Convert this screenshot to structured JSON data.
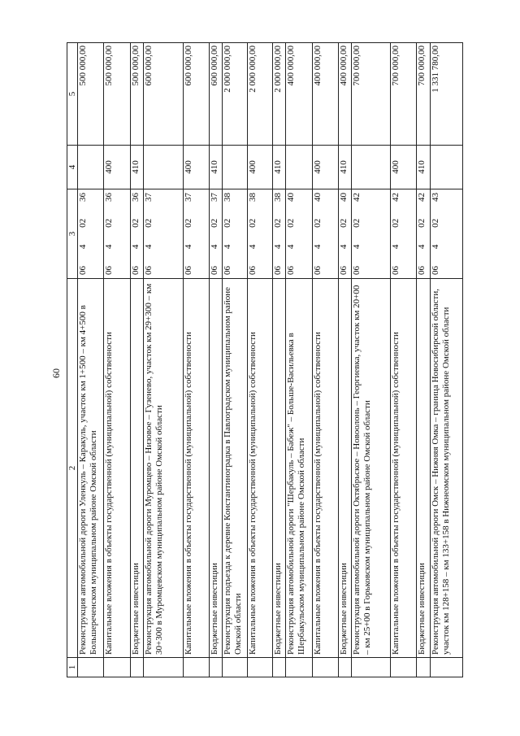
{
  "page_number": "60",
  "headers": [
    "1",
    "2",
    "3",
    "4",
    "5"
  ],
  "rows": [
    {
      "c1": "",
      "c2": "Реконструкция автомобильной дороги Уленкуль – Каракуль, участок км 1+500 – км 4+500 в Большереченском муниципальном районе Омской области",
      "c3": [
        "06",
        "4",
        "02",
        "36"
      ],
      "c4": "",
      "c5": "500 000,00"
    },
    {
      "c1": "",
      "c2": "Капитальные вложения в объекты государственной (муниципальной) собственности",
      "c3": [
        "06",
        "4",
        "02",
        "36"
      ],
      "c4": "400",
      "c5": "500 000,00"
    },
    {
      "c1": "",
      "c2": "Бюджетные инвестиции",
      "c3": [
        "06",
        "4",
        "02",
        "36"
      ],
      "c4": "410",
      "c5": "500 000,00"
    },
    {
      "c1": "",
      "c2": "Реконструкция автомобильной дороги Муромцево – Низовое – Гузенево, участок км 29+300 – км 30+300 в Муромцевском муниципальном районе Омской области",
      "c3": [
        "06",
        "4",
        "02",
        "37"
      ],
      "c4": "",
      "c5": "600 000,00"
    },
    {
      "c1": "",
      "c2": "Капитальные вложения в объекты государственной (муниципальной) собственности",
      "c3": [
        "06",
        "4",
        "02",
        "37"
      ],
      "c4": "400",
      "c5": "600 000,00"
    },
    {
      "c1": "",
      "c2": "Бюджетные инвестиции",
      "c3": [
        "06",
        "4",
        "02",
        "37"
      ],
      "c4": "410",
      "c5": "600 000,00"
    },
    {
      "c1": "",
      "c2": "Реконструкция подъезда к деревне Константиноградка в Павлоградском муниципальном районе Омской области",
      "c3": [
        "06",
        "4",
        "02",
        "38"
      ],
      "c4": "",
      "c5": "2 000 000,00"
    },
    {
      "c1": "",
      "c2": "Капитальные вложения в объекты государственной (муниципальной) собственности",
      "c3": [
        "06",
        "4",
        "02",
        "38"
      ],
      "c4": "400",
      "c5": "2 000 000,00"
    },
    {
      "c1": "",
      "c2": "Бюджетные инвестиции",
      "c3": [
        "06",
        "4",
        "02",
        "38"
      ],
      "c4": "410",
      "c5": "2 000 000,00"
    },
    {
      "c1": "",
      "c2": "Реконструкция автомобильной дороги \"Шербакуль – Бабеж\" – Больше-Васильевка в Шербакульском муниципальном районе Омской области",
      "c3": [
        "06",
        "4",
        "02",
        "40"
      ],
      "c4": "",
      "c5": "400 000,00"
    },
    {
      "c1": "",
      "c2": "Капитальные вложения в объекты государственной (муниципальной) собственности",
      "c3": [
        "06",
        "4",
        "02",
        "40"
      ],
      "c4": "400",
      "c5": "400 000,00"
    },
    {
      "c1": "",
      "c2": "Бюджетные инвестиции",
      "c3": [
        "06",
        "4",
        "02",
        "40"
      ],
      "c4": "410",
      "c5": "400 000,00"
    },
    {
      "c1": "",
      "c2": "Реконструкция автомобильной дороги Октябрьское – Новоолонь – Георгиевка, участок км 20+00 – км 25+00 в Горьковском муниципальном районе Омской области",
      "c3": [
        "06",
        "4",
        "02",
        "42"
      ],
      "c4": "",
      "c5": "700 000,00"
    },
    {
      "c1": "",
      "c2": "Капитальные вложения в объекты государственной (муниципальной) собственности",
      "c3": [
        "06",
        "4",
        "02",
        "42"
      ],
      "c4": "400",
      "c5": "700 000,00"
    },
    {
      "c1": "",
      "c2": "Бюджетные инвестиции",
      "c3": [
        "06",
        "4",
        "02",
        "42"
      ],
      "c4": "410",
      "c5": "700 000,00"
    },
    {
      "c1": "",
      "c2": "Реконструкция автомобильной дороги Омск – Нижняя Омка – граница Новосибирской области, участок км 128+158 – км 133+158 в Нижнеомском муниципальном районе Омской области",
      "c3": [
        "06",
        "4",
        "02",
        "43"
      ],
      "c4": "",
      "c5": "1 331 780,00"
    }
  ]
}
